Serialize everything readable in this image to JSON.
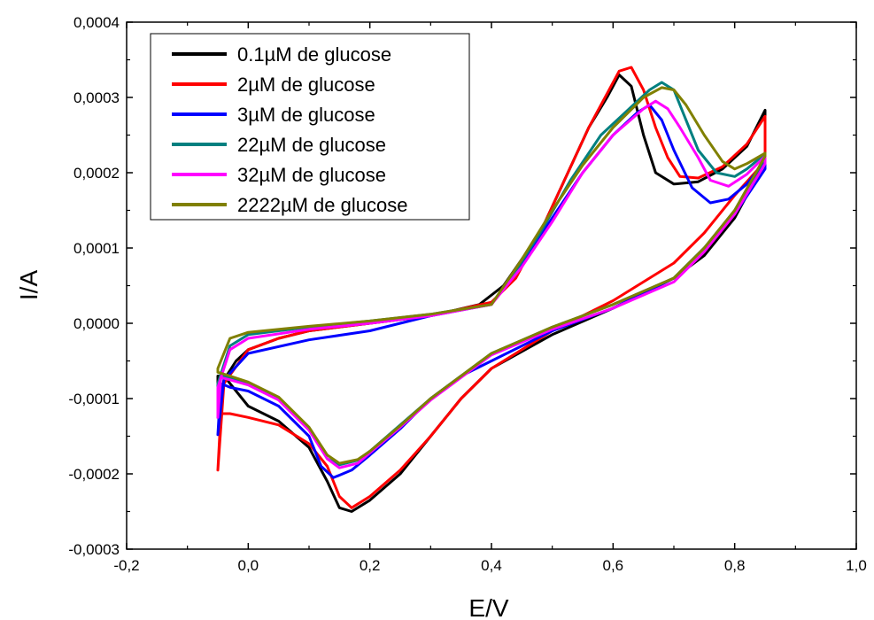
{
  "chart_data": {
    "type": "line",
    "xlabel": "E/V",
    "ylabel": "I/A",
    "xlim": [
      -0.2,
      1.0
    ],
    "ylim": [
      -0.0003,
      0.0004
    ],
    "x_ticks": [
      -0.2,
      0.0,
      0.2,
      0.4,
      0.6,
      0.8,
      1.0
    ],
    "x_tick_labels": [
      "-0,2",
      "0,0",
      "0,2",
      "0,4",
      "0,6",
      "0,8",
      "1,0"
    ],
    "y_ticks": [
      -0.0003,
      -0.0002,
      -0.0001,
      0.0,
      0.0001,
      0.0002,
      0.0003,
      0.0004
    ],
    "y_tick_labels": [
      "-0,0003",
      "-0,0002",
      "-0,0001",
      "0,0000",
      "0,0001",
      "0,0002",
      "0,0003",
      "0,0004"
    ],
    "grid": false,
    "legend_position": "top-left",
    "series": [
      {
        "name": "0.1µM de glucose",
        "color": "#000000",
        "points": [
          [
            -0.05,
            -0.000125
          ],
          [
            -0.04,
            -7.5e-05
          ],
          [
            -0.02,
            -5e-05
          ],
          [
            0.0,
            -3.5e-05
          ],
          [
            0.05,
            -2e-05
          ],
          [
            0.1,
            -1e-05
          ],
          [
            0.2,
            0.0
          ],
          [
            0.3,
            1e-05
          ],
          [
            0.38,
            2.5e-05
          ],
          [
            0.42,
            5e-05
          ],
          [
            0.48,
            0.00012
          ],
          [
            0.52,
            0.00019
          ],
          [
            0.56,
            0.00026
          ],
          [
            0.59,
            0.0003
          ],
          [
            0.61,
            0.00033
          ],
          [
            0.63,
            0.000315
          ],
          [
            0.65,
            0.00025
          ],
          [
            0.67,
            0.0002
          ],
          [
            0.7,
            0.000185
          ],
          [
            0.74,
            0.000188
          ],
          [
            0.78,
            0.000205
          ],
          [
            0.82,
            0.000235
          ],
          [
            0.85,
            0.000283
          ],
          [
            0.85,
            0.000215
          ],
          [
            0.8,
            0.00014
          ],
          [
            0.75,
            9e-05
          ],
          [
            0.7,
            6e-05
          ],
          [
            0.6,
            2e-05
          ],
          [
            0.5,
            -1.5e-05
          ],
          [
            0.4,
            -6e-05
          ],
          [
            0.35,
            -0.0001
          ],
          [
            0.3,
            -0.00015
          ],
          [
            0.25,
            -0.0002
          ],
          [
            0.2,
            -0.000235
          ],
          [
            0.17,
            -0.00025
          ],
          [
            0.15,
            -0.000245
          ],
          [
            0.13,
            -0.00021
          ],
          [
            0.1,
            -0.000165
          ],
          [
            0.05,
            -0.00013
          ],
          [
            0.0,
            -0.00011
          ],
          [
            -0.04,
            -7e-05
          ],
          [
            -0.05,
            -7e-05
          ]
        ]
      },
      {
        "name": "2µM de glucose",
        "color": "#ff0000",
        "points": [
          [
            -0.05,
            -0.000195
          ],
          [
            -0.045,
            -0.00012
          ],
          [
            -0.03,
            -0.00012
          ],
          [
            0.0,
            -0.000125
          ],
          [
            0.05,
            -0.000135
          ],
          [
            0.1,
            -0.00016
          ],
          [
            0.13,
            -0.00019
          ],
          [
            0.15,
            -0.00023
          ],
          [
            0.17,
            -0.000245
          ],
          [
            0.2,
            -0.00023
          ],
          [
            0.25,
            -0.000195
          ],
          [
            0.3,
            -0.00015
          ],
          [
            0.35,
            -0.0001
          ],
          [
            0.4,
            -6e-05
          ],
          [
            0.5,
            -1e-05
          ],
          [
            0.6,
            3e-05
          ],
          [
            0.7,
            8e-05
          ],
          [
            0.75,
            0.00012
          ],
          [
            0.8,
            0.00017
          ],
          [
            0.85,
            0.000215
          ],
          [
            0.85,
            0.000275
          ],
          [
            0.82,
            0.000238
          ],
          [
            0.78,
            0.000208
          ],
          [
            0.74,
            0.000193
          ],
          [
            0.71,
            0.000195
          ],
          [
            0.69,
            0.00022
          ],
          [
            0.67,
            0.00026
          ],
          [
            0.65,
            0.00031
          ],
          [
            0.63,
            0.00034
          ],
          [
            0.61,
            0.000335
          ],
          [
            0.59,
            0.000305
          ],
          [
            0.56,
            0.00026
          ],
          [
            0.52,
            0.00019
          ],
          [
            0.48,
            0.00012
          ],
          [
            0.44,
            6e-05
          ],
          [
            0.4,
            2.8e-05
          ],
          [
            0.3,
            1e-05
          ],
          [
            0.2,
            0.0
          ],
          [
            0.1,
            -1e-05
          ],
          [
            0.05,
            -2e-05
          ],
          [
            0.0,
            -3.5e-05
          ],
          [
            -0.04,
            -8e-05
          ]
        ]
      },
      {
        "name": "3µM de glucose",
        "color": "#0000ff",
        "points": [
          [
            -0.05,
            -0.000148
          ],
          [
            -0.045,
            -8e-05
          ],
          [
            -0.03,
            -8.5e-05
          ],
          [
            0.0,
            -9e-05
          ],
          [
            0.05,
            -0.00011
          ],
          [
            0.1,
            -0.00015
          ],
          [
            0.12,
            -0.00019
          ],
          [
            0.14,
            -0.000205
          ],
          [
            0.17,
            -0.000195
          ],
          [
            0.2,
            -0.000175
          ],
          [
            0.25,
            -0.00014
          ],
          [
            0.3,
            -0.0001
          ],
          [
            0.35,
            -7e-05
          ],
          [
            0.4,
            -5e-05
          ],
          [
            0.5,
            -1e-05
          ],
          [
            0.6,
            2e-05
          ],
          [
            0.7,
            6e-05
          ],
          [
            0.75,
            0.0001
          ],
          [
            0.8,
            0.000145
          ],
          [
            0.85,
            0.000205
          ],
          [
            0.85,
            0.000215
          ],
          [
            0.82,
            0.000185
          ],
          [
            0.79,
            0.000165
          ],
          [
            0.76,
            0.00016
          ],
          [
            0.73,
            0.00018
          ],
          [
            0.7,
            0.00023
          ],
          [
            0.68,
            0.00027
          ],
          [
            0.66,
            0.00029
          ],
          [
            0.64,
            0.00028
          ],
          [
            0.6,
            0.00025
          ],
          [
            0.55,
            0.0002
          ],
          [
            0.5,
            0.00014
          ],
          [
            0.45,
            8e-05
          ],
          [
            0.4,
            2.5e-05
          ],
          [
            0.3,
            1e-05
          ],
          [
            0.2,
            -1e-05
          ],
          [
            0.1,
            -2.2e-05
          ],
          [
            0.0,
            -4e-05
          ],
          [
            -0.04,
            -7.5e-05
          ]
        ]
      },
      {
        "name": "22µM de glucose",
        "color": "#008080",
        "points": [
          [
            -0.05,
            -0.00012
          ],
          [
            -0.045,
            -7e-05
          ],
          [
            -0.03,
            -7.2e-05
          ],
          [
            0.0,
            -8e-05
          ],
          [
            0.05,
            -0.0001
          ],
          [
            0.1,
            -0.00014
          ],
          [
            0.13,
            -0.00018
          ],
          [
            0.15,
            -0.000188
          ],
          [
            0.18,
            -0.000182
          ],
          [
            0.2,
            -0.00017
          ],
          [
            0.25,
            -0.000135
          ],
          [
            0.3,
            -0.0001
          ],
          [
            0.35,
            -7e-05
          ],
          [
            0.4,
            -4e-05
          ],
          [
            0.5,
            -5e-06
          ],
          [
            0.6,
            2.5e-05
          ],
          [
            0.7,
            6e-05
          ],
          [
            0.75,
            0.0001
          ],
          [
            0.8,
            0.00015
          ],
          [
            0.85,
            0.00022
          ],
          [
            0.85,
            0.000225
          ],
          [
            0.82,
            0.000205
          ],
          [
            0.8,
            0.000195
          ],
          [
            0.77,
            0.0002
          ],
          [
            0.74,
            0.00023
          ],
          [
            0.72,
            0.00027
          ],
          [
            0.7,
            0.00031
          ],
          [
            0.68,
            0.00032
          ],
          [
            0.66,
            0.00031
          ],
          [
            0.62,
            0.00028
          ],
          [
            0.58,
            0.00025
          ],
          [
            0.53,
            0.00019
          ],
          [
            0.48,
            0.00012
          ],
          [
            0.44,
            7e-05
          ],
          [
            0.4,
            2.5e-05
          ],
          [
            0.3,
            1.2e-05
          ],
          [
            0.2,
            3e-06
          ],
          [
            0.1,
            -5e-06
          ],
          [
            0.0,
            -1.5e-05
          ],
          [
            -0.03,
            -3e-05
          ],
          [
            -0.05,
            -8e-05
          ]
        ]
      },
      {
        "name": "32µM de glucose",
        "color": "#ff00ff",
        "points": [
          [
            -0.05,
            -0.000125
          ],
          [
            -0.045,
            -7.2e-05
          ],
          [
            -0.03,
            -7.5e-05
          ],
          [
            0.0,
            -8.2e-05
          ],
          [
            0.05,
            -0.000102
          ],
          [
            0.1,
            -0.000142
          ],
          [
            0.13,
            -0.00018
          ],
          [
            0.15,
            -0.000192
          ],
          [
            0.18,
            -0.000186
          ],
          [
            0.2,
            -0.000172
          ],
          [
            0.25,
            -0.000138
          ],
          [
            0.3,
            -0.000102
          ],
          [
            0.35,
            -7.2e-05
          ],
          [
            0.4,
            -4.2e-05
          ],
          [
            0.5,
            -8e-06
          ],
          [
            0.6,
            2e-05
          ],
          [
            0.7,
            5.5e-05
          ],
          [
            0.75,
            9.5e-05
          ],
          [
            0.8,
            0.000145
          ],
          [
            0.85,
            0.000212
          ],
          [
            0.85,
            0.000222
          ],
          [
            0.82,
            0.000198
          ],
          [
            0.79,
            0.000182
          ],
          [
            0.76,
            0.00019
          ],
          [
            0.74,
            0.00022
          ],
          [
            0.71,
            0.00026
          ],
          [
            0.69,
            0.000285
          ],
          [
            0.67,
            0.000295
          ],
          [
            0.65,
            0.000285
          ],
          [
            0.6,
            0.00025
          ],
          [
            0.55,
            0.0002
          ],
          [
            0.5,
            0.000135
          ],
          [
            0.45,
            7.5e-05
          ],
          [
            0.4,
            2.5e-05
          ],
          [
            0.3,
            1e-05
          ],
          [
            0.2,
            0.0
          ],
          [
            0.1,
            -8e-06
          ],
          [
            0.0,
            -2e-05
          ],
          [
            -0.03,
            -3.5e-05
          ],
          [
            -0.05,
            -8.5e-05
          ]
        ]
      },
      {
        "name": "2222µM de glucose",
        "color": "#808000",
        "points": [
          [
            -0.05,
            -6.5e-05
          ],
          [
            -0.03,
            -7e-05
          ],
          [
            0.0,
            -7.8e-05
          ],
          [
            0.05,
            -9.8e-05
          ],
          [
            0.1,
            -0.000138
          ],
          [
            0.13,
            -0.000175
          ],
          [
            0.15,
            -0.000186
          ],
          [
            0.18,
            -0.000181
          ],
          [
            0.2,
            -0.00017
          ],
          [
            0.25,
            -0.000136
          ],
          [
            0.3,
            -0.0001
          ],
          [
            0.35,
            -7e-05
          ],
          [
            0.4,
            -4e-05
          ],
          [
            0.5,
            -5e-06
          ],
          [
            0.6,
            2.5e-05
          ],
          [
            0.7,
            6e-05
          ],
          [
            0.75,
            0.0001
          ],
          [
            0.8,
            0.00015
          ],
          [
            0.85,
            0.000222
          ],
          [
            0.85,
            0.000226
          ],
          [
            0.82,
            0.000212
          ],
          [
            0.8,
            0.000205
          ],
          [
            0.78,
            0.000215
          ],
          [
            0.75,
            0.00025
          ],
          [
            0.72,
            0.00029
          ],
          [
            0.7,
            0.00031
          ],
          [
            0.68,
            0.000313
          ],
          [
            0.65,
            0.0003
          ],
          [
            0.6,
            0.00026
          ],
          [
            0.55,
            0.00021
          ],
          [
            0.5,
            0.00015
          ],
          [
            0.45,
            8.5e-05
          ],
          [
            0.4,
            2.5e-05
          ],
          [
            0.3,
            1.2e-05
          ],
          [
            0.2,
            3e-06
          ],
          [
            0.1,
            -4e-06
          ],
          [
            0.0,
            -1.2e-05
          ],
          [
            -0.03,
            -2e-05
          ],
          [
            -0.05,
            -6e-05
          ]
        ]
      }
    ]
  }
}
